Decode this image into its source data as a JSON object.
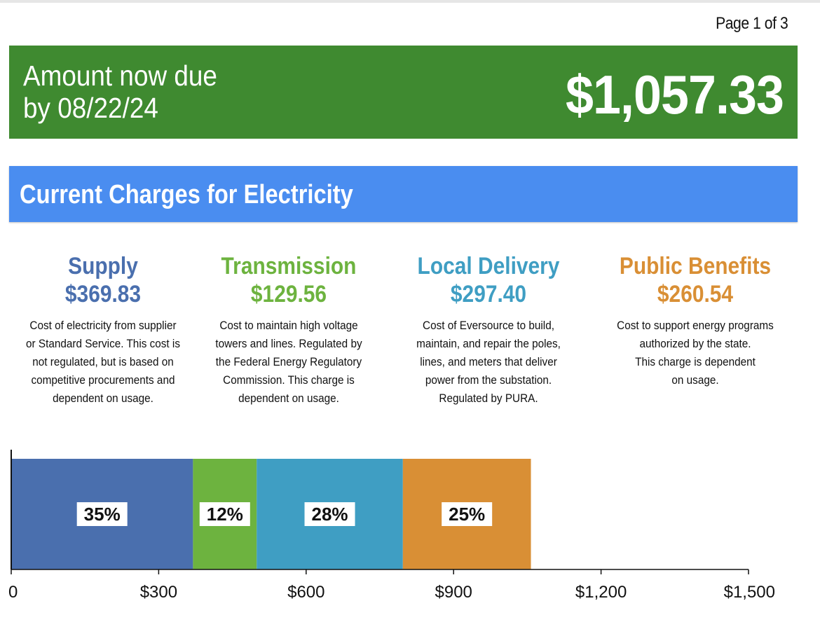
{
  "page": {
    "indicator": "Page 1 of 3"
  },
  "amount_due": {
    "label_line1": "Amount now due",
    "label_line2": "by 08/22/24",
    "amount": "$1,057.33"
  },
  "section": {
    "title": "Current Charges for Electricity"
  },
  "categories": [
    {
      "name": "Supply",
      "amount": "$369.83",
      "color": "#4a6fae",
      "description": [
        "Cost of electricity from supplier",
        "or Standard Service. This cost is",
        "not regulated, but is based on",
        "competitive procurements and",
        "dependent on usage."
      ]
    },
    {
      "name": "Transmission",
      "amount": "$129.56",
      "color": "#6db33f",
      "description": [
        "Cost to maintain high voltage",
        "towers and lines. Regulated by",
        "the Federal Energy Regulatory",
        "Commission. This charge is",
        "dependent on usage."
      ]
    },
    {
      "name": "Local Delivery",
      "amount": "$297.40",
      "color": "#3f9ec3",
      "description": [
        "Cost of Eversource to build,",
        "maintain, and repair the poles,",
        "lines, and meters that deliver",
        "power from the substation.",
        "Regulated by PURA."
      ]
    },
    {
      "name": "Public Benefits",
      "amount": "$260.54",
      "color": "#d98f35",
      "description": [
        "Cost to support energy programs",
        "authorized by the state.",
        "This charge is dependent",
        "on usage."
      ]
    }
  ],
  "chart_data": {
    "type": "bar",
    "orientation": "horizontal",
    "stacked": true,
    "title": "",
    "xlabel": "",
    "ylabel": "",
    "xlim": [
      0,
      1500
    ],
    "ticks": [
      0,
      300,
      600,
      900,
      1200,
      1500
    ],
    "tick_labels": [
      "0",
      "$300",
      "$600",
      "$900",
      "$1,200",
      "$1,500"
    ],
    "series": [
      {
        "name": "Supply",
        "value": 369.83,
        "label": "35%",
        "color": "#4a6fae"
      },
      {
        "name": "Transmission",
        "value": 129.56,
        "label": "12%",
        "color": "#6db33f"
      },
      {
        "name": "Local Delivery",
        "value": 297.4,
        "label": "28%",
        "color": "#3f9ec3"
      },
      {
        "name": "Public Benefits",
        "value": 260.54,
        "label": "25%",
        "color": "#d98f35"
      }
    ],
    "grid": false,
    "legend": "none"
  }
}
